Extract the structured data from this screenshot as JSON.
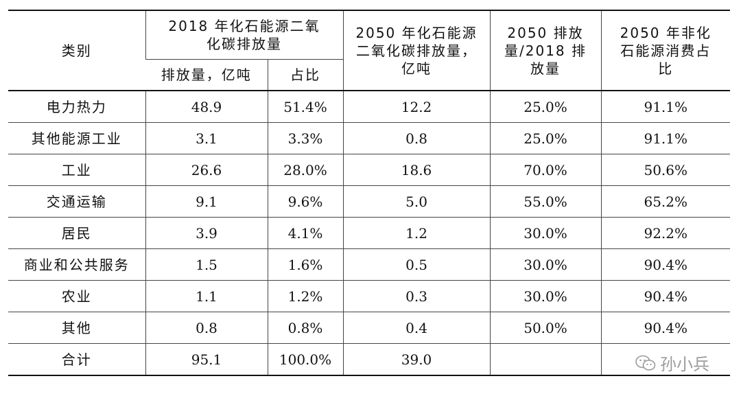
{
  "header": {
    "category": "类别",
    "group_2018": "2018 年化石能源二氧化碳排放量",
    "emission_sub": "排放量，亿吨",
    "share_sub": "占比",
    "emission_2050": "2050 年化石能源二氧化碳排放量，亿吨",
    "ratio": "2050 排放量/2018 排放量",
    "nonfossil": "2050 年非化石能源消费占比"
  },
  "rows": [
    {
      "category": "电力热力",
      "emission_2018": "48.9",
      "share_2018": "51.4%",
      "emission_2050": "12.2",
      "ratio": "25.0%",
      "nonfossil_share": "91.1%"
    },
    {
      "category": "其他能源工业",
      "emission_2018": "3.1",
      "share_2018": "3.3%",
      "emission_2050": "0.8",
      "ratio": "25.0%",
      "nonfossil_share": "91.1%"
    },
    {
      "category": "工业",
      "emission_2018": "26.6",
      "share_2018": "28.0%",
      "emission_2050": "18.6",
      "ratio": "70.0%",
      "nonfossil_share": "50.6%"
    },
    {
      "category": "交通运输",
      "emission_2018": "9.1",
      "share_2018": "9.6%",
      "emission_2050": "5.0",
      "ratio": "55.0%",
      "nonfossil_share": "65.2%"
    },
    {
      "category": "居民",
      "emission_2018": "3.9",
      "share_2018": "4.1%",
      "emission_2050": "1.2",
      "ratio": "30.0%",
      "nonfossil_share": "92.2%"
    },
    {
      "category": "商业和公共服务",
      "emission_2018": "1.5",
      "share_2018": "1.6%",
      "emission_2050": "0.5",
      "ratio": "30.0%",
      "nonfossil_share": "90.4%"
    },
    {
      "category": "农业",
      "emission_2018": "1.1",
      "share_2018": "1.2%",
      "emission_2050": "0.3",
      "ratio": "30.0%",
      "nonfossil_share": "90.4%"
    },
    {
      "category": "其他",
      "emission_2018": "0.8",
      "share_2018": "0.8%",
      "emission_2050": "0.4",
      "ratio": "50.0%",
      "nonfossil_share": "90.4%"
    }
  ],
  "total": {
    "category": "合计",
    "emission_2018": "95.1",
    "share_2018": "100.0%",
    "emission_2050": "39.0",
    "ratio": "",
    "nonfossil_share": ""
  },
  "watermark": {
    "text": "孙小兵",
    "icon": "wechat-icon"
  }
}
